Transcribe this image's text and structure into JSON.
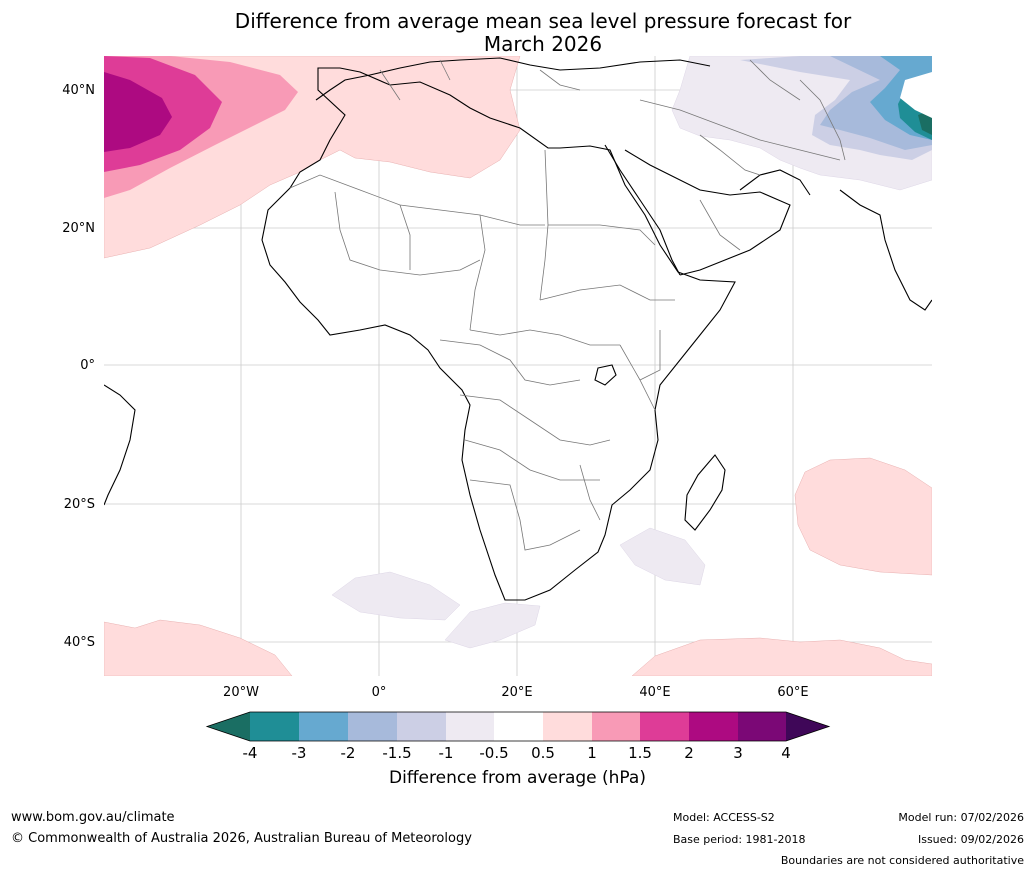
{
  "title": {
    "line1": "Difference from average mean sea level pressure forecast for",
    "line2": "March 2026"
  },
  "map": {
    "latitude_labels": [
      "40°N",
      "20°N",
      "0°",
      "20°S",
      "40°S"
    ],
    "longitude_labels": [
      "20°W",
      "0°",
      "20°E",
      "40°E",
      "60°E"
    ],
    "region": "Africa, Middle East and surrounding oceans"
  },
  "colorbar": {
    "label": "Difference from average (hPa)",
    "ticks": [
      "-4",
      "-3",
      "-2",
      "-1.5",
      "-1",
      "-0.5",
      "0.5",
      "1",
      "1.5",
      "2",
      "3",
      "4"
    ],
    "colors": {
      "below_min": "#1a6e63",
      "bin_1": "#1f8e96",
      "bin_2": "#66a9d0",
      "bin_3": "#a7badb",
      "bin_4": "#cccfe5",
      "bin_5": "#eeeaf2",
      "bin_6": "#ffffff",
      "bin_7": "#ffdcdc",
      "bin_8": "#f89ab6",
      "bin_9": "#de3c97",
      "bin_10": "#ad0a81",
      "bin_11": "#7b0876",
      "above_max": "#3f0758"
    }
  },
  "footer": {
    "website": "www.bom.gov.au/climate",
    "copyright": "© Commonwealth of Australia 2026, Australian Bureau of Meteorology",
    "model": "Model: ACCESS-S2",
    "base_period": "Base period: 1981-2018",
    "model_run": "Model run: 07/02/2026",
    "issued": "Issued: 09/02/2026",
    "disclaimer": "Boundaries are not considered authoritative"
  }
}
